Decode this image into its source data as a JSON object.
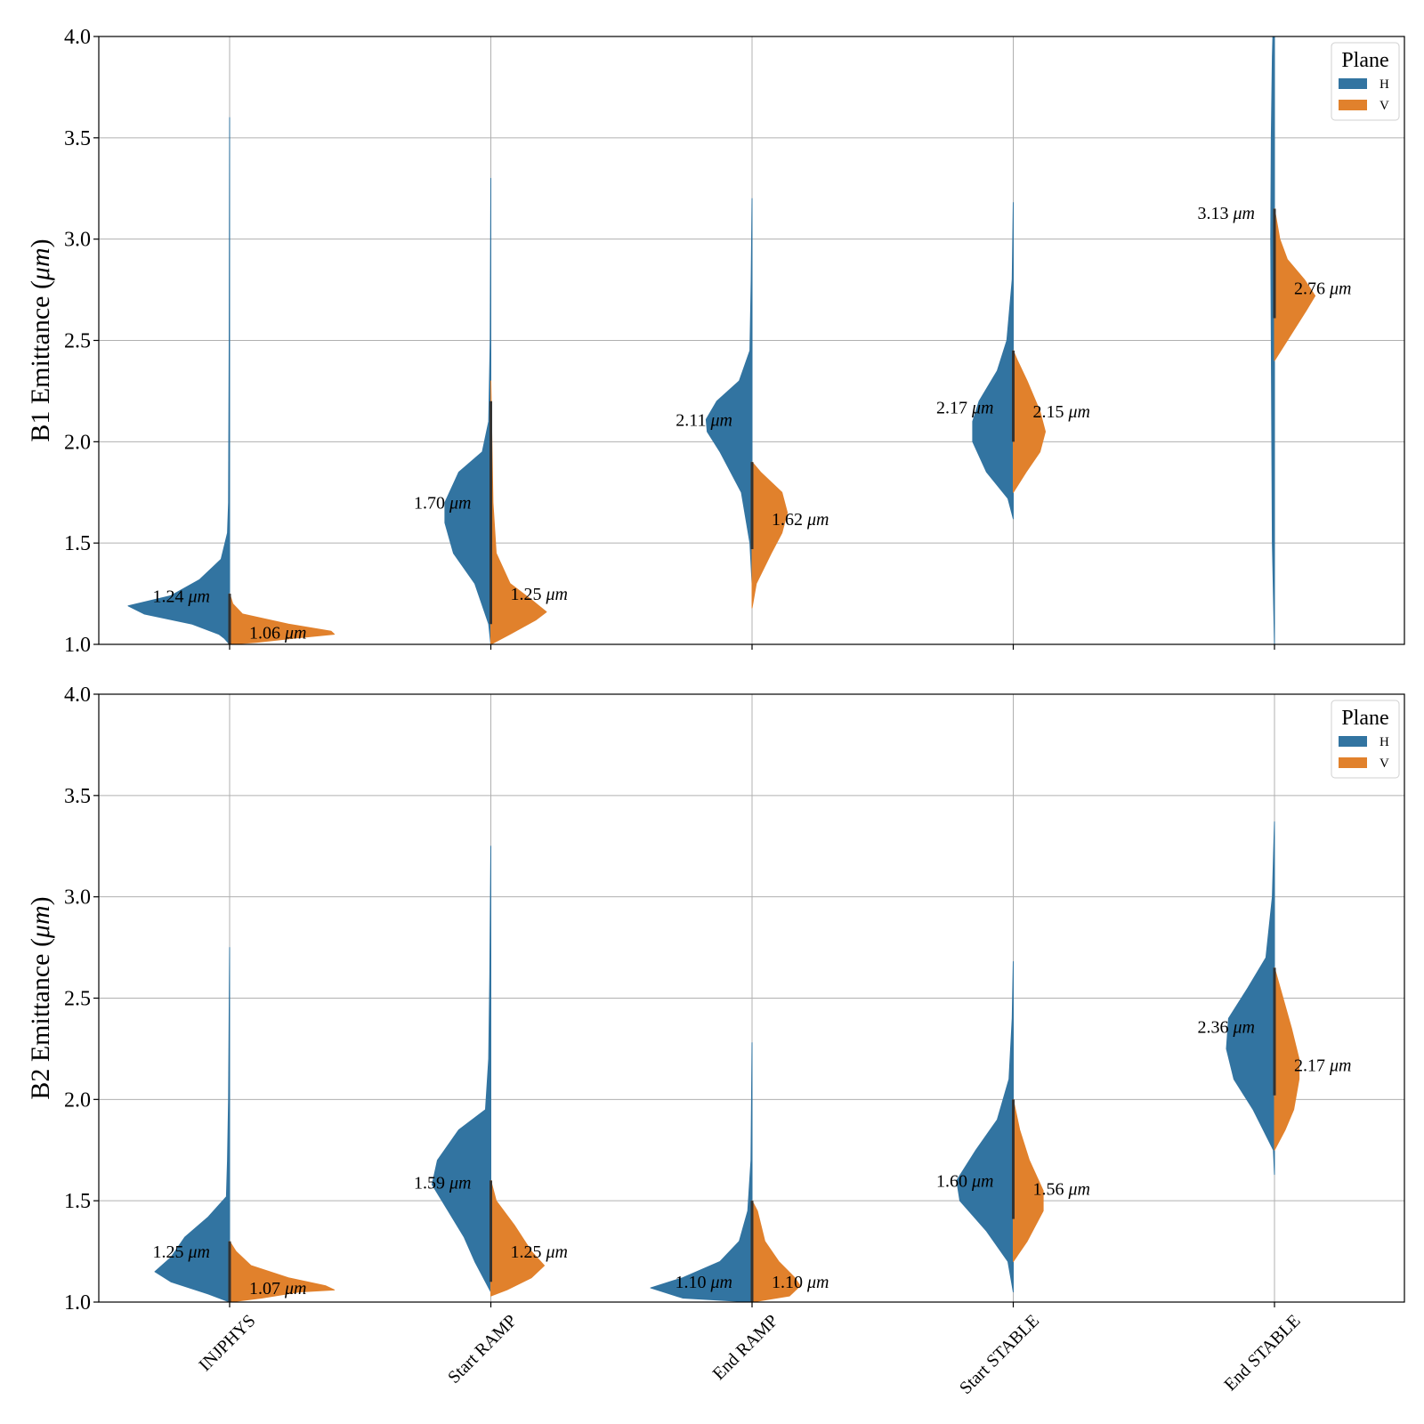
{
  "colors": {
    "H": "#3274a1",
    "V": "#e1812c",
    "grid": "#b0b0b0",
    "median": "#333333"
  },
  "categories": [
    "INJPHYS",
    "Start RAMP",
    "End RAMP",
    "Start STABLE",
    "End STABLE"
  ],
  "legend": {
    "title": "Plane",
    "entries": [
      "H",
      "V"
    ],
    "position": "top-right"
  },
  "chart_data": [
    {
      "type": "violin",
      "split_by": "Plane",
      "ylabel_text": "B1 Emittance (",
      "ylabel_unit": "μm",
      "ylabel_close": ")",
      "ylim": [
        1.0,
        4.0
      ],
      "yticks": [
        "1.0",
        "1.5",
        "2.0",
        "2.5",
        "3.0",
        "3.5",
        "4.0"
      ],
      "grid": true,
      "series": [
        {
          "name": "H",
          "medians": [
            1.24,
            1.7,
            2.11,
            2.17,
            3.13
          ],
          "labels": [
            "1.24",
            "1.70",
            "2.11",
            "2.17",
            "3.13"
          ],
          "ranges": [
            [
              1.0,
              3.6
            ],
            [
              1.0,
              3.3
            ],
            [
              1.3,
              3.2
            ],
            [
              1.62,
              3.18
            ],
            [
              1.0,
              4.0
            ]
          ]
        },
        {
          "name": "V",
          "medians": [
            1.06,
            1.25,
            1.62,
            2.15,
            2.76
          ],
          "labels": [
            "1.06",
            "1.25",
            "1.62",
            "2.15",
            "2.76"
          ],
          "ranges": [
            [
              1.0,
              1.25
            ],
            [
              1.0,
              2.3
            ],
            [
              1.18,
              1.9
            ],
            [
              1.75,
              2.45
            ],
            [
              2.4,
              3.15
            ]
          ]
        }
      ]
    },
    {
      "type": "violin",
      "split_by": "Plane",
      "ylabel_text": "B2 Emittance (",
      "ylabel_unit": "μm",
      "ylabel_close": ")",
      "ylim": [
        1.0,
        4.0
      ],
      "yticks": [
        "1.0",
        "1.5",
        "2.0",
        "2.5",
        "3.0",
        "3.5",
        "4.0"
      ],
      "grid": true,
      "series": [
        {
          "name": "H",
          "medians": [
            1.25,
            1.59,
            1.1,
            1.6,
            2.36
          ],
          "labels": [
            "1.25",
            "1.59",
            "1.10",
            "1.60",
            "2.36"
          ],
          "ranges": [
            [
              1.0,
              2.75
            ],
            [
              1.05,
              3.25
            ],
            [
              1.0,
              2.28
            ],
            [
              1.05,
              2.68
            ],
            [
              1.63,
              3.37
            ]
          ]
        },
        {
          "name": "V",
          "medians": [
            1.07,
            1.25,
            1.1,
            1.56,
            2.17
          ],
          "labels": [
            "1.07",
            "1.25",
            "1.10",
            "1.56",
            "2.17"
          ],
          "ranges": [
            [
              1.0,
              1.3
            ],
            [
              1.03,
              1.6
            ],
            [
              1.0,
              1.5
            ],
            [
              1.2,
              2.0
            ],
            [
              1.75,
              2.65
            ]
          ]
        }
      ]
    }
  ]
}
